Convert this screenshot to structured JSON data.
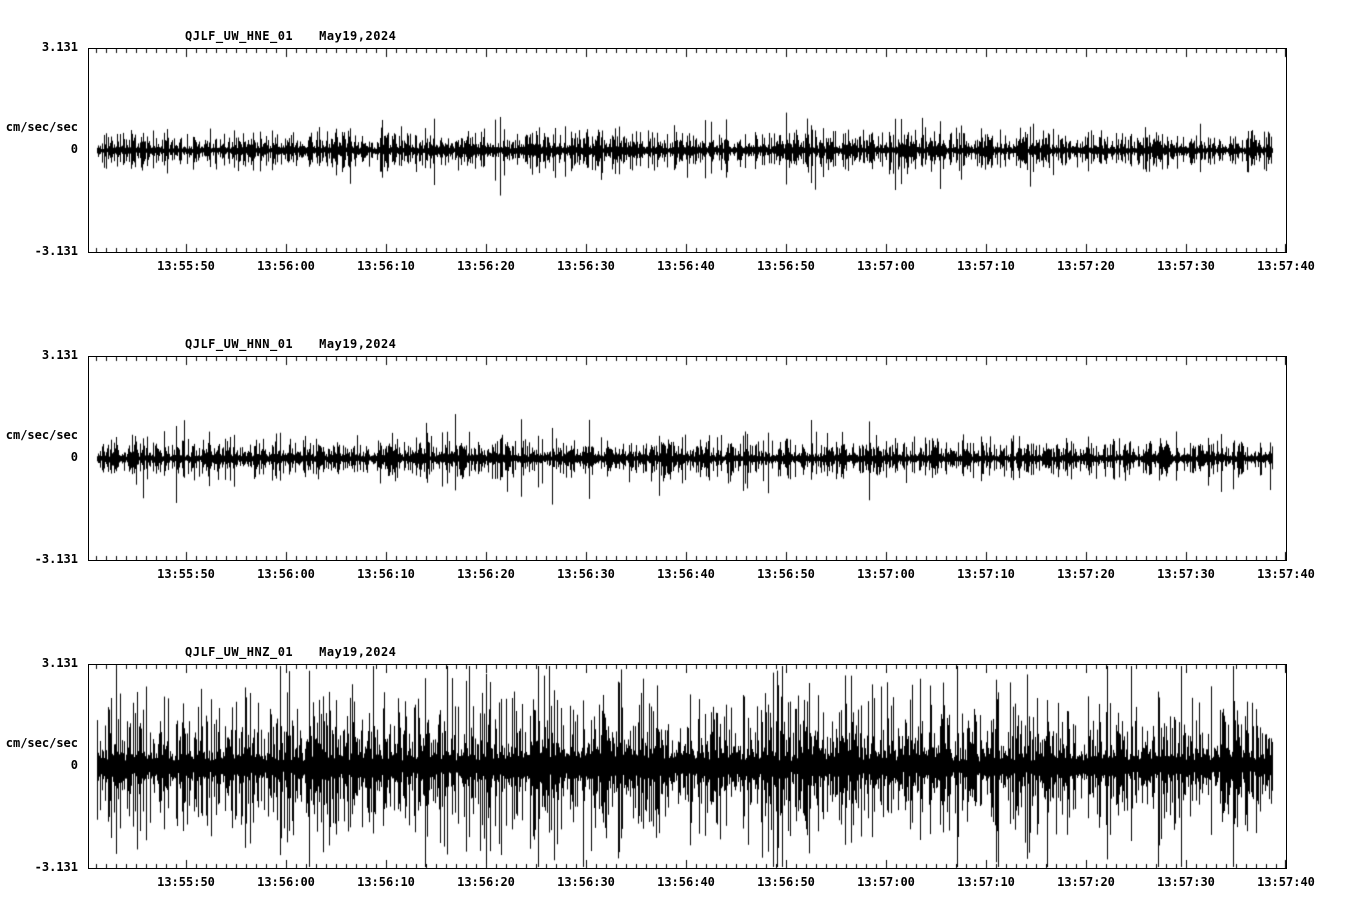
{
  "page": {
    "background": "#ffffff",
    "trace_color": "#000000"
  },
  "chart_data": [
    {
      "type": "line",
      "title": "QJLF_UW_HNE_01",
      "date": "May19,2024",
      "ylabel": "cm/sec/sec",
      "ylim": [
        -3.131,
        3.131
      ],
      "ytick_labels": [
        "3.131",
        "0",
        "-3.131"
      ],
      "x_tick_labels": [
        "13:55:50",
        "13:56:00",
        "13:56:10",
        "13:56:20",
        "13:56:30",
        "13:56:40",
        "13:56:50",
        "13:57:00",
        "13:57:10",
        "13:57:20",
        "13:57:30",
        "13:57:40"
      ],
      "x_major_interval_sec": 10,
      "x_minor_interval_sec": 1,
      "color": "#000000",
      "envelope": [
        0.55,
        0.6,
        0.55,
        0.6,
        0.58,
        0.62,
        0.65,
        0.6,
        0.7,
        0.75,
        0.68,
        0.62,
        0.58,
        0.6,
        0.62,
        0.58,
        0.65,
        0.6,
        0.55,
        0.6,
        0.55,
        0.58,
        0.55,
        0.58
      ]
    },
    {
      "type": "line",
      "title": "QJLF_UW_HNN_01",
      "date": "May19,2024",
      "ylabel": "cm/sec/sec",
      "ylim": [
        -3.131,
        3.131
      ],
      "ytick_labels": [
        "3.131",
        "0",
        "-3.131"
      ],
      "x_tick_labels": [
        "13:55:50",
        "13:56:00",
        "13:56:10",
        "13:56:20",
        "13:56:30",
        "13:56:40",
        "13:56:50",
        "13:57:00",
        "13:57:10",
        "13:57:20",
        "13:57:30",
        "13:57:40"
      ],
      "x_major_interval_sec": 10,
      "x_minor_interval_sec": 1,
      "color": "#000000",
      "envelope": [
        0.62,
        0.6,
        0.62,
        0.65,
        0.7,
        0.66,
        0.72,
        0.7,
        0.75,
        0.72,
        0.68,
        0.72,
        0.66,
        0.62,
        0.66,
        0.62,
        0.65,
        0.6,
        0.58,
        0.6,
        0.56,
        0.6,
        0.56,
        0.58
      ]
    },
    {
      "type": "line",
      "title": "QJLF_UW_HNZ_01",
      "date": "May19,2024",
      "ylabel": "cm/sec/sec",
      "ylim": [
        -3.131,
        3.131
      ],
      "ytick_labels": [
        "3.131",
        "0",
        "-3.131"
      ],
      "x_tick_labels": [
        "13:55:50",
        "13:56:00",
        "13:56:10",
        "13:56:20",
        "13:56:30",
        "13:56:40",
        "13:56:50",
        "13:57:00",
        "13:57:10",
        "13:57:20",
        "13:57:30",
        "13:57:40"
      ],
      "x_major_interval_sec": 10,
      "x_minor_interval_sec": 1,
      "color": "#000000",
      "envelope": [
        2.0,
        2.1,
        1.95,
        2.0,
        2.1,
        2.2,
        2.05,
        2.3,
        2.4,
        2.5,
        2.4,
        2.45,
        2.4,
        2.3,
        2.25,
        2.15,
        2.25,
        2.05,
        2.1,
        2.0,
        1.95,
        2.05,
        1.95,
        1.85
      ]
    }
  ]
}
